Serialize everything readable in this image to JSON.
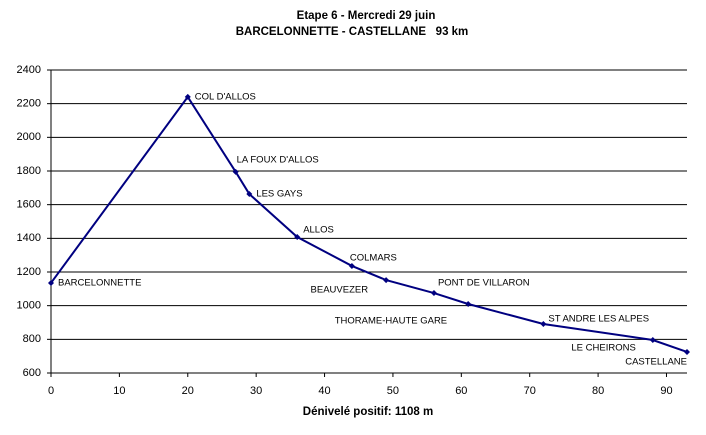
{
  "chart_data": {
    "type": "line",
    "title": "Etape 6 - Mercredi 29 juin",
    "subtitle": "BARCELONNETTE - CASTELLANE   93 km",
    "x_label": "Dénivelé positif: 1108 m",
    "x": [
      0,
      20,
      27,
      29,
      36,
      44,
      49,
      56,
      61,
      72,
      88,
      93
    ],
    "values": [
      1135,
      2240,
      1795,
      1663,
      1408,
      1236,
      1152,
      1075,
      1010,
      891,
      796,
      725
    ],
    "point_labels": [
      "BARCELONNETTE",
      "COL D'ALLOS",
      "LA FOUX D'ALLOS",
      "LES GAYS",
      "ALLOS",
      "COLMARS",
      "BEAUVEZER",
      "PONT DE VILLARON",
      "THORAME-HAUTE GARE",
      "ST ANDRE LES ALPES",
      "LE CHEIRONS",
      "CASTELLANE"
    ],
    "color": "#000080",
    "xlim": [
      0,
      93
    ],
    "xticks": [
      0,
      10,
      20,
      30,
      40,
      50,
      60,
      70,
      80,
      90
    ],
    "ylim": [
      600,
      2400
    ],
    "yticks": [
      600,
      800,
      1000,
      1200,
      1400,
      1600,
      1800,
      2000,
      2200,
      2400
    ],
    "grid": true
  }
}
